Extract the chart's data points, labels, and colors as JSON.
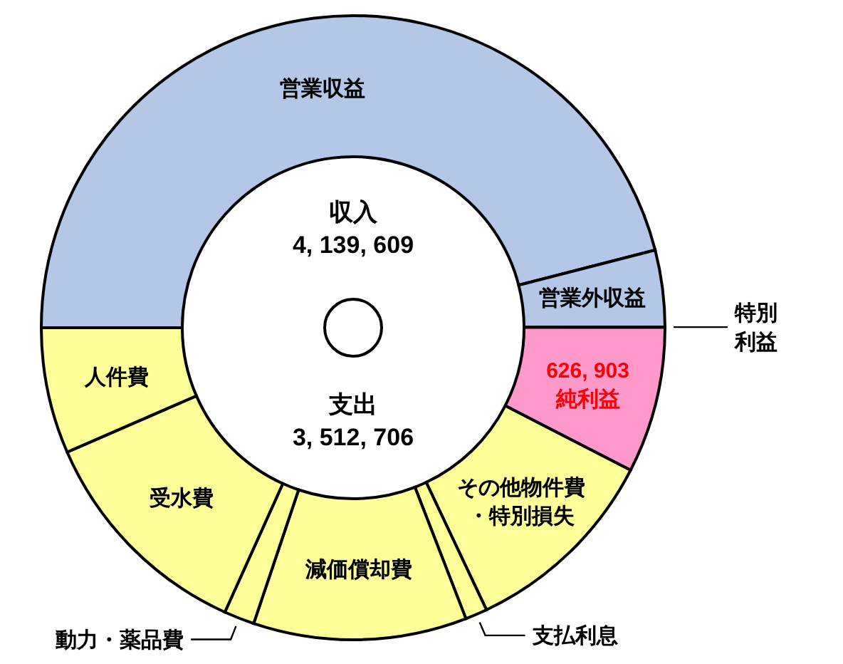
{
  "chart_data": {
    "type": "donut",
    "categories": [
      "営業収益",
      "営業外収益",
      "特別利益",
      "純利益",
      "その他物件費・特別損失",
      "支払利息",
      "減価償却費",
      "動力・薬品費",
      "受水費",
      "人件費"
    ],
    "values": [
      45.97,
      3.97,
      null,
      7.57,
      10.42,
      1.14,
      11.05,
      1.58,
      11.72,
      6.52
    ],
    "colors": [
      "#b4c7e7",
      "#b4c7e7",
      "#b4c7e7",
      "#ff99cc",
      "#ffff99",
      "#ffff99",
      "#ffff99",
      "#ffff99",
      "#ffff99",
      "#ffff99"
    ],
    "annotations": [
      "収入\n4, 139, 609",
      "支出\n3, 512, 706",
      {
        "text": "626, 903",
        "x": "純利益"
      }
    ]
  }
}
